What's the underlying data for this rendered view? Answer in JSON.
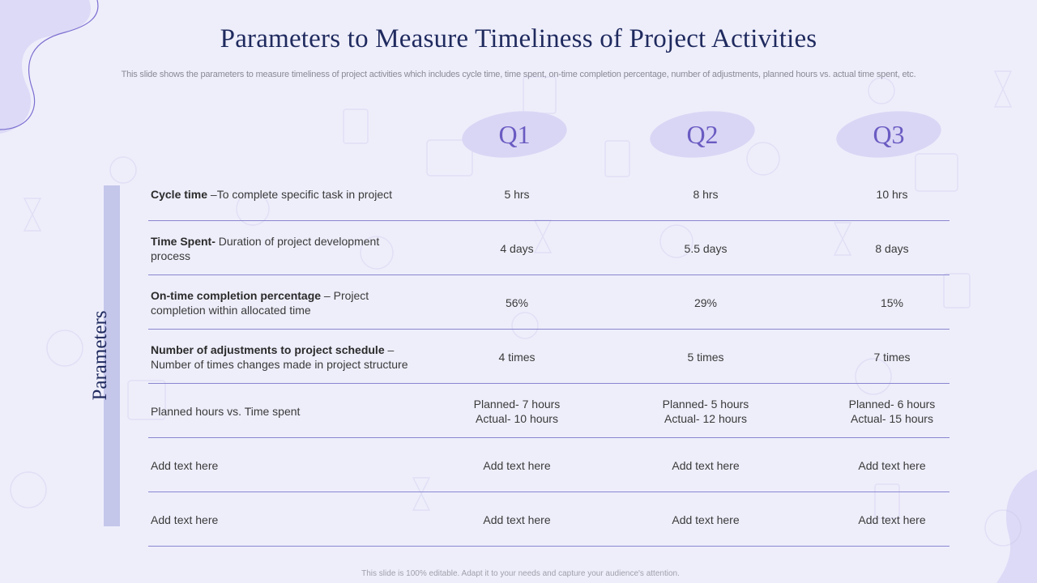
{
  "title": "Parameters to Measure Timeliness of Project Activities",
  "subtitle": "This slide shows the parameters to measure timeliness of project activities which includes cycle time, time spent, on-time completion percentage, number of adjustments, planned hours vs. actual time spent, etc.",
  "side_label": "Parameters",
  "quarters": [
    "Q1",
    "Q2",
    "Q3"
  ],
  "rows": [
    {
      "bold": "Cycle time",
      "rest": " –To complete specific task in project",
      "q1": "5 hrs",
      "q2": "8 hrs",
      "q3": "10 hrs"
    },
    {
      "bold": "Time Spent-",
      "rest": " Duration of project development process",
      "q1": "4 days",
      "q2": "5.5 days",
      "q3": "8 days"
    },
    {
      "bold": "On-time completion percentage",
      "rest": " – Project completion within allocated time",
      "q1": "56%",
      "q2": "29%",
      "q3": "15%"
    },
    {
      "bold": "Number of adjustments to project schedule",
      "rest": " – Number of times changes made in project structure",
      "q1": "4 times",
      "q2": "5 times",
      "q3": "7 times"
    },
    {
      "bold": "",
      "rest": "Planned hours vs. Time spent",
      "q1a": "Planned- 7 hours",
      "q1b": "Actual- 10 hours",
      "q2a": "Planned- 5 hours",
      "q2b": "Actual- 12 hours",
      "q3a": "Planned- 6 hours",
      "q3b": "Actual- 15 hours"
    },
    {
      "bold": "",
      "rest": "Add text here",
      "q1": "Add text here",
      "q2": "Add text here",
      "q3": "Add text here"
    },
    {
      "bold": "",
      "rest": "Add text here",
      "q1": "Add text here",
      "q2": "Add text here",
      "q3": "Add text here"
    }
  ],
  "footer": "This slide is 100% editable. Adapt it to your needs and capture your audience's attention.",
  "colors": {
    "background": "#eeeefb",
    "title": "#1f2a5e",
    "accent": "#6a5bc2",
    "blob": "#d9d6f5",
    "bar": "#c4c6ea",
    "rule": "#8a86cf"
  }
}
